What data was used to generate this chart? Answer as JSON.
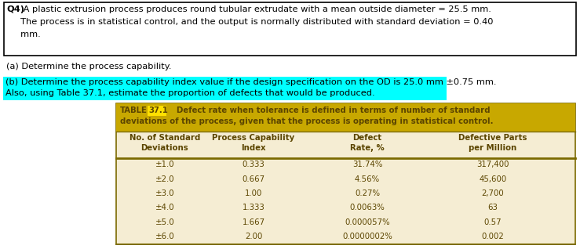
{
  "q4_bold": "Q4)",
  "q4_line1": " A plastic extrusion process produces round tubular extrudate with a mean outside diameter = 25.5 mm.",
  "q4_line2": "     The process is in statistical control, and the output is normally distributed with standard deviation = 0.40",
  "q4_line3": "     mm.",
  "part_a": "(a) Determine the process capability.",
  "part_b_line1": "(b) Determine the process capability index value if the design specification on the OD is 25.0 mm ±0.75 mm.",
  "part_b_line2": "Also, using Table 37.1, estimate the proportion of defects that would be produced.",
  "table_label": "TABLE",
  "table_num": "37.1",
  "table_desc1": "  Defect rate when tolerance is defined in terms of number of standard",
  "table_desc2": "deviations of the process, given that the process is operating in statistical control.",
  "col_headers": [
    "No. of Standard\nDeviations",
    "Process Capability\nIndex",
    "Defect\nRate, %",
    "Defective Parts\nper Million"
  ],
  "table_data": [
    [
      "±1.0",
      "0.333",
      "31.74%",
      "317,400"
    ],
    [
      "±2.0",
      "0.667",
      "4.56%",
      "45,600"
    ],
    [
      "±3.0",
      "1.00",
      "0.27%",
      "2,700"
    ],
    [
      "±4.0",
      "1.333",
      "0.0063%",
      "63"
    ],
    [
      "±5.0",
      "1.667",
      "0.000057%",
      "0.57"
    ],
    [
      "±6.0",
      "2.00",
      "0.0000002%",
      "0.002"
    ]
  ],
  "fig_bg": "#ffffff",
  "q4_box_edge": "#000000",
  "q4_box_fill": "#ffffff",
  "highlight_color": "#00FFFF",
  "table_outer_edge": "#7B6A00",
  "table_header_bg": "#C8A800",
  "table_num_bg": "#FFE000",
  "table_body_bg": "#F5EDD3",
  "table_text": "#5B4500",
  "body_text": "#000000",
  "font": "DejaVu Sans"
}
